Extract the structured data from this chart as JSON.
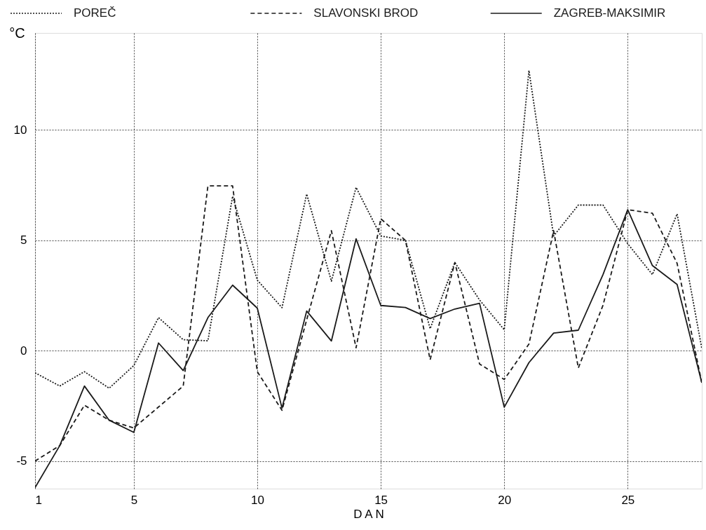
{
  "chart_data": {
    "type": "line",
    "xlabel": "D A N",
    "ylabel": "°C",
    "x": [
      1,
      2,
      3,
      4,
      5,
      6,
      7,
      8,
      9,
      10,
      11,
      12,
      13,
      14,
      15,
      16,
      17,
      18,
      19,
      20,
      21,
      22,
      23,
      24,
      25,
      26,
      27,
      28
    ],
    "xlim": [
      1,
      28
    ],
    "xticks": [
      1,
      5,
      10,
      15,
      20,
      25
    ],
    "ylim": [
      -6.25,
      14.4
    ],
    "yticks": [
      -5,
      0,
      5,
      10
    ],
    "grid": true,
    "legend": "top",
    "series": [
      {
        "name": "POREČ",
        "color": "#1a1a1a",
        "line_style": "dotted",
        "values": [
          -1.0,
          -1.6,
          -0.95,
          -1.7,
          -0.67,
          1.5,
          0.5,
          0.45,
          7.0,
          3.2,
          1.95,
          7.1,
          3.15,
          7.4,
          5.2,
          5.0,
          1.0,
          4.0,
          2.3,
          0.95,
          12.7,
          5.2,
          6.6,
          6.6,
          4.85,
          3.45,
          6.2,
          0.1
        ]
      },
      {
        "name": "SLAVONSKI BROD",
        "color": "#1a1a1a",
        "line_style": "dashed",
        "values": [
          -5.0,
          -4.3,
          -2.47,
          -3.15,
          -3.5,
          -2.55,
          -1.6,
          7.47,
          7.47,
          -0.95,
          -2.7,
          1.4,
          5.44,
          0.13,
          5.98,
          5.0,
          -0.41,
          4.0,
          -0.6,
          -1.3,
          0.3,
          5.44,
          -0.78,
          2.06,
          6.39,
          6.23,
          3.96,
          -1.45
        ]
      },
      {
        "name": "ZAGREB-MAKSIMIR",
        "color": "#1a1a1a",
        "line_style": "solid",
        "values": [
          -6.2,
          -4.3,
          -1.6,
          -3.15,
          -3.7,
          0.35,
          -0.9,
          1.5,
          2.97,
          1.93,
          -2.6,
          1.8,
          0.44,
          5.07,
          2.05,
          1.96,
          1.46,
          1.89,
          2.15,
          -2.56,
          -0.54,
          0.8,
          0.93,
          3.45,
          6.39,
          3.86,
          3.0,
          -1.45
        ]
      }
    ]
  }
}
